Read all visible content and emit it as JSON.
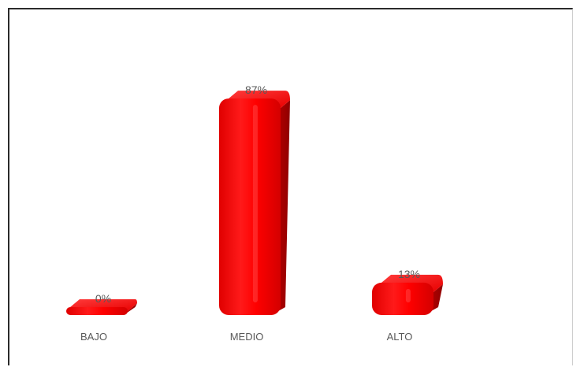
{
  "chart_data": {
    "type": "bar",
    "categories": [
      "BAJO",
      "MEDIO",
      "ALTO"
    ],
    "values": [
      0,
      87,
      13
    ],
    "data_labels": [
      "0%",
      "87%",
      "13%"
    ],
    "ylim": [
      0,
      100
    ],
    "grid": false,
    "legend": "none",
    "style": "3d-cylinder",
    "colors": {
      "bar_main": "#ff0000",
      "bar_top": "#ff2a2a",
      "bar_side": "#b80000",
      "bar_highlight": "#ff8a8a",
      "label_text": "#595959"
    }
  }
}
